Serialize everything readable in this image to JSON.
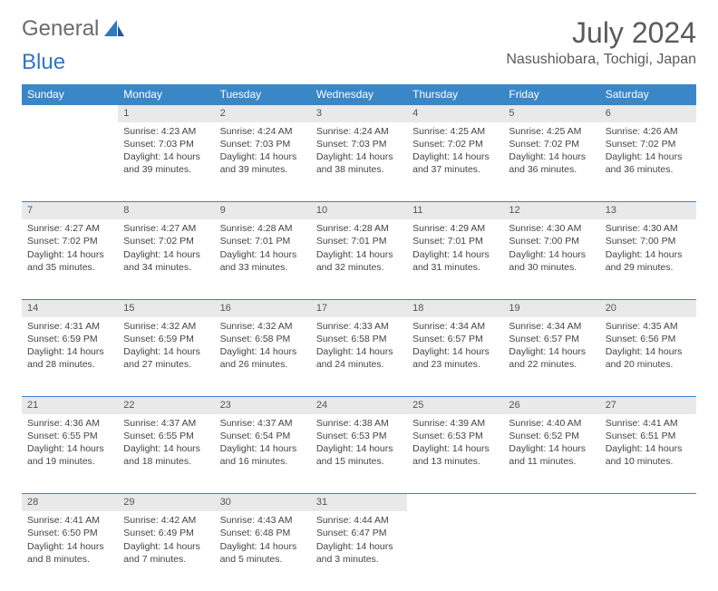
{
  "logo": {
    "text1": "General",
    "text2": "Blue"
  },
  "header": {
    "month": "July 2024",
    "location": "Nasushiobara, Tochigi, Japan"
  },
  "colors": {
    "header_bg": "#3a87c8",
    "header_text": "#ffffff",
    "daynum_bg": "#e9e9e9",
    "border": "#3a87c8"
  },
  "weekdays": [
    "Sunday",
    "Monday",
    "Tuesday",
    "Wednesday",
    "Thursday",
    "Friday",
    "Saturday"
  ],
  "weeks": [
    {
      "nums": [
        "",
        "1",
        "2",
        "3",
        "4",
        "5",
        "6"
      ],
      "cells": [
        null,
        {
          "sunrise": "Sunrise: 4:23 AM",
          "sunset": "Sunset: 7:03 PM",
          "day1": "Daylight: 14 hours",
          "day2": "and 39 minutes."
        },
        {
          "sunrise": "Sunrise: 4:24 AM",
          "sunset": "Sunset: 7:03 PM",
          "day1": "Daylight: 14 hours",
          "day2": "and 39 minutes."
        },
        {
          "sunrise": "Sunrise: 4:24 AM",
          "sunset": "Sunset: 7:03 PM",
          "day1": "Daylight: 14 hours",
          "day2": "and 38 minutes."
        },
        {
          "sunrise": "Sunrise: 4:25 AM",
          "sunset": "Sunset: 7:02 PM",
          "day1": "Daylight: 14 hours",
          "day2": "and 37 minutes."
        },
        {
          "sunrise": "Sunrise: 4:25 AM",
          "sunset": "Sunset: 7:02 PM",
          "day1": "Daylight: 14 hours",
          "day2": "and 36 minutes."
        },
        {
          "sunrise": "Sunrise: 4:26 AM",
          "sunset": "Sunset: 7:02 PM",
          "day1": "Daylight: 14 hours",
          "day2": "and 36 minutes."
        }
      ]
    },
    {
      "nums": [
        "7",
        "8",
        "9",
        "10",
        "11",
        "12",
        "13"
      ],
      "cells": [
        {
          "sunrise": "Sunrise: 4:27 AM",
          "sunset": "Sunset: 7:02 PM",
          "day1": "Daylight: 14 hours",
          "day2": "and 35 minutes."
        },
        {
          "sunrise": "Sunrise: 4:27 AM",
          "sunset": "Sunset: 7:02 PM",
          "day1": "Daylight: 14 hours",
          "day2": "and 34 minutes."
        },
        {
          "sunrise": "Sunrise: 4:28 AM",
          "sunset": "Sunset: 7:01 PM",
          "day1": "Daylight: 14 hours",
          "day2": "and 33 minutes."
        },
        {
          "sunrise": "Sunrise: 4:28 AM",
          "sunset": "Sunset: 7:01 PM",
          "day1": "Daylight: 14 hours",
          "day2": "and 32 minutes."
        },
        {
          "sunrise": "Sunrise: 4:29 AM",
          "sunset": "Sunset: 7:01 PM",
          "day1": "Daylight: 14 hours",
          "day2": "and 31 minutes."
        },
        {
          "sunrise": "Sunrise: 4:30 AM",
          "sunset": "Sunset: 7:00 PM",
          "day1": "Daylight: 14 hours",
          "day2": "and 30 minutes."
        },
        {
          "sunrise": "Sunrise: 4:30 AM",
          "sunset": "Sunset: 7:00 PM",
          "day1": "Daylight: 14 hours",
          "day2": "and 29 minutes."
        }
      ]
    },
    {
      "nums": [
        "14",
        "15",
        "16",
        "17",
        "18",
        "19",
        "20"
      ],
      "cells": [
        {
          "sunrise": "Sunrise: 4:31 AM",
          "sunset": "Sunset: 6:59 PM",
          "day1": "Daylight: 14 hours",
          "day2": "and 28 minutes."
        },
        {
          "sunrise": "Sunrise: 4:32 AM",
          "sunset": "Sunset: 6:59 PM",
          "day1": "Daylight: 14 hours",
          "day2": "and 27 minutes."
        },
        {
          "sunrise": "Sunrise: 4:32 AM",
          "sunset": "Sunset: 6:58 PM",
          "day1": "Daylight: 14 hours",
          "day2": "and 26 minutes."
        },
        {
          "sunrise": "Sunrise: 4:33 AM",
          "sunset": "Sunset: 6:58 PM",
          "day1": "Daylight: 14 hours",
          "day2": "and 24 minutes."
        },
        {
          "sunrise": "Sunrise: 4:34 AM",
          "sunset": "Sunset: 6:57 PM",
          "day1": "Daylight: 14 hours",
          "day2": "and 23 minutes."
        },
        {
          "sunrise": "Sunrise: 4:34 AM",
          "sunset": "Sunset: 6:57 PM",
          "day1": "Daylight: 14 hours",
          "day2": "and 22 minutes."
        },
        {
          "sunrise": "Sunrise: 4:35 AM",
          "sunset": "Sunset: 6:56 PM",
          "day1": "Daylight: 14 hours",
          "day2": "and 20 minutes."
        }
      ]
    },
    {
      "nums": [
        "21",
        "22",
        "23",
        "24",
        "25",
        "26",
        "27"
      ],
      "cells": [
        {
          "sunrise": "Sunrise: 4:36 AM",
          "sunset": "Sunset: 6:55 PM",
          "day1": "Daylight: 14 hours",
          "day2": "and 19 minutes."
        },
        {
          "sunrise": "Sunrise: 4:37 AM",
          "sunset": "Sunset: 6:55 PM",
          "day1": "Daylight: 14 hours",
          "day2": "and 18 minutes."
        },
        {
          "sunrise": "Sunrise: 4:37 AM",
          "sunset": "Sunset: 6:54 PM",
          "day1": "Daylight: 14 hours",
          "day2": "and 16 minutes."
        },
        {
          "sunrise": "Sunrise: 4:38 AM",
          "sunset": "Sunset: 6:53 PM",
          "day1": "Daylight: 14 hours",
          "day2": "and 15 minutes."
        },
        {
          "sunrise": "Sunrise: 4:39 AM",
          "sunset": "Sunset: 6:53 PM",
          "day1": "Daylight: 14 hours",
          "day2": "and 13 minutes."
        },
        {
          "sunrise": "Sunrise: 4:40 AM",
          "sunset": "Sunset: 6:52 PM",
          "day1": "Daylight: 14 hours",
          "day2": "and 11 minutes."
        },
        {
          "sunrise": "Sunrise: 4:41 AM",
          "sunset": "Sunset: 6:51 PM",
          "day1": "Daylight: 14 hours",
          "day2": "and 10 minutes."
        }
      ]
    },
    {
      "nums": [
        "28",
        "29",
        "30",
        "31",
        "",
        "",
        ""
      ],
      "cells": [
        {
          "sunrise": "Sunrise: 4:41 AM",
          "sunset": "Sunset: 6:50 PM",
          "day1": "Daylight: 14 hours",
          "day2": "and 8 minutes."
        },
        {
          "sunrise": "Sunrise: 4:42 AM",
          "sunset": "Sunset: 6:49 PM",
          "day1": "Daylight: 14 hours",
          "day2": "and 7 minutes."
        },
        {
          "sunrise": "Sunrise: 4:43 AM",
          "sunset": "Sunset: 6:48 PM",
          "day1": "Daylight: 14 hours",
          "day2": "and 5 minutes."
        },
        {
          "sunrise": "Sunrise: 4:44 AM",
          "sunset": "Sunset: 6:47 PM",
          "day1": "Daylight: 14 hours",
          "day2": "and 3 minutes."
        },
        null,
        null,
        null
      ]
    }
  ]
}
